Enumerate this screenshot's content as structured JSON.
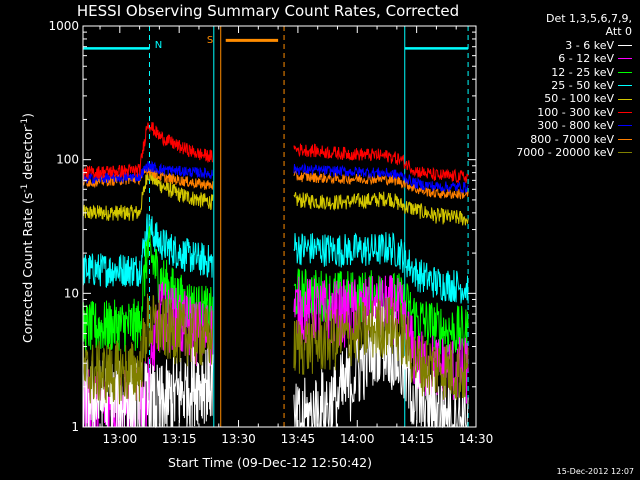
{
  "chart_data": {
    "type": "line",
    "title": "HESSI Observing Summary Count Rates, Corrected",
    "xlabel": "Start Time (09-Dec-12 12:50:42)",
    "ylabel_main": "Corrected Count Rate (s",
    "ylabel_sup1": "-1",
    "ylabel_mid": " detector",
    "ylabel_sup2": "-1",
    "ylabel_end": ")",
    "y_scale": "log",
    "ylim": [
      1,
      1000
    ],
    "xlim": [
      "12:50:42",
      "14:30:00"
    ],
    "x_ticks": [
      "13:00",
      "13:15",
      "13:30",
      "13:45",
      "14:00",
      "14:15",
      "14:30"
    ],
    "y_ticks": [
      "1",
      "10",
      "100",
      "1000"
    ],
    "legend_header": [
      "Det 1,3,5,6,7,9,",
      "Att 0"
    ],
    "legend_position": "right, outside plot",
    "flags": {
      "night_label": "N",
      "saa_label": "S",
      "night_periods": [
        [
          "12:50:42",
          "13:07:30"
        ],
        [
          "14:12:00",
          "14:28:00"
        ]
      ],
      "saa_period": [
        "13:25:30",
        "13:41:30"
      ],
      "night_color": "#00ffff",
      "saa_color": "#ff8c00"
    },
    "series": [
      {
        "name": "3 - 6 keV",
        "color": "#ffffff"
      },
      {
        "name": "6 - 12 keV",
        "color": "#ff00ff"
      },
      {
        "name": "12 - 25 keV",
        "color": "#00ff00"
      },
      {
        "name": "25 - 50 keV",
        "color": "#00ffff"
      },
      {
        "name": "50 - 100 keV",
        "color": "#d4c800"
      },
      {
        "name": "100 - 300 keV",
        "color": "#ff0000"
      },
      {
        "name": "300 - 800 keV",
        "color": "#0000ff"
      },
      {
        "name": "800 - 7000 keV",
        "color": "#ff8000"
      },
      {
        "name": "7000 - 20000 keV",
        "color": "#808000"
      }
    ],
    "profiles": [
      {
        "t": [
          "12:50:42",
          "13:05:00",
          "13:07:00",
          "13:10:00",
          "13:15:00",
          "13:20:00",
          "13:23:30"
        ],
        "v": [
          [
            1.6,
            1.6,
            1.5,
            1.4,
            1.8,
            2.2,
            2.2
          ],
          [
            1.5,
            1.5,
            1.8,
            7,
            6,
            5,
            5
          ],
          [
            5.5,
            5.8,
            22,
            13,
            9,
            7.5,
            7
          ],
          [
            15,
            15,
            32,
            24,
            20,
            18,
            17
          ],
          [
            40,
            40,
            80,
            65,
            55,
            50,
            48
          ],
          [
            80,
            83,
            190,
            150,
            125,
            110,
            105
          ],
          [
            72,
            75,
            90,
            85,
            82,
            80,
            78
          ],
          [
            68,
            72,
            85,
            75,
            70,
            66,
            64
          ],
          [
            2.5,
            2.6,
            6,
            5.5,
            5,
            4.8,
            4.5
          ]
        ]
      },
      {
        "t": [
          "13:44:00",
          "13:55:00",
          "14:05:00",
          "14:08:00",
          "14:11:00",
          "14:15:00",
          "14:20:00",
          "14:28:00"
        ],
        "v": [
          [
            1,
            1.6,
            4.5,
            4.2,
            3,
            1.6,
            1.3,
            1.2
          ],
          [
            7.5,
            7,
            7.5,
            7.8,
            7,
            3,
            2.8,
            2.6
          ],
          [
            10,
            9.5,
            9.5,
            9.5,
            9,
            6.5,
            5.5,
            5
          ],
          [
            22,
            21,
            21,
            22,
            20,
            14,
            12,
            11
          ],
          [
            50,
            48,
            50,
            52,
            46,
            42,
            38,
            36
          ],
          [
            120,
            112,
            108,
            106,
            100,
            82,
            76,
            74
          ],
          [
            85,
            82,
            80,
            79,
            76,
            66,
            63,
            62
          ],
          [
            75,
            72,
            72,
            71,
            69,
            60,
            56,
            55
          ],
          [
            4,
            4.5,
            5.5,
            5.8,
            5,
            3,
            2.8,
            2.5
          ]
        ]
      }
    ]
  },
  "timestamp": "15-Dec-2012 12:07"
}
